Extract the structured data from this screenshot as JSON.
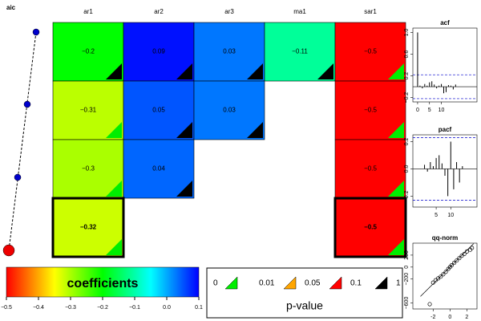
{
  "chart_data": [
    {
      "type": "coefficient-grid",
      "y_label": "aic",
      "columns": [
        "ar1",
        "ar2",
        "ar3",
        "ma1",
        "sar1"
      ],
      "values": [
        [
          -0.2,
          0.09,
          0.03,
          -0.11,
          -0.5
        ],
        [
          -0.31,
          0.05,
          0.03,
          null,
          -0.5
        ],
        [
          -0.3,
          0.04,
          null,
          null,
          -0.5
        ],
        [
          -0.32,
          null,
          null,
          null,
          -0.5
        ]
      ],
      "value_labels": [
        [
          "−0.2",
          "0.09",
          "0.03",
          "−0.11",
          "−0.5"
        ],
        [
          "−0.31",
          "0.05",
          "0.03",
          null,
          "−0.5"
        ],
        [
          "−0.3",
          "0.04",
          null,
          null,
          "−0.5"
        ],
        [
          "−0.32",
          null,
          null,
          null,
          "−0.5"
        ]
      ],
      "pvalue_colors": [
        [
          "#000000",
          "#000000",
          "#000000",
          "#000000",
          "#00ee00"
        ],
        [
          "#00ee00",
          "#000000",
          "#000000",
          null,
          "#00ee00"
        ],
        [
          "#00ee00",
          "#000000",
          null,
          null,
          "#00ee00"
        ],
        [
          "#00ee00",
          null,
          null,
          null,
          "#00ee00"
        ]
      ],
      "selected_row": 3,
      "colorbar": {
        "title": "coefficients",
        "lim": [
          -0.5,
          0.1
        ],
        "colors": [
          "#ff0000",
          "#ffff00",
          "#00ff00",
          "#00ffff",
          "#0000ff"
        ],
        "ticks": [
          {
            "value": -0.5,
            "label": "−0.5"
          },
          {
            "value": -0.4,
            "label": "−0.4"
          },
          {
            "value": -0.3,
            "label": "−0.3"
          },
          {
            "value": -0.2,
            "label": "−0.2"
          },
          {
            "value": -0.1,
            "label": "−0.1"
          },
          {
            "value": 0,
            "label": "0.0"
          },
          0.1
        ]
      },
      "pvalue_legend": {
        "title": "p-value",
        "breaks": [
          0,
          0.01,
          0.05,
          0.1,
          1
        ],
        "colors": [
          "#00ee00",
          "#ffa500",
          "#ff0000",
          "#000000"
        ]
      }
    },
    {
      "type": "acf",
      "title": "acf",
      "lags": [
        0,
        1,
        2,
        3,
        4,
        5,
        6,
        7,
        8,
        9,
        10,
        11,
        12,
        13,
        14,
        15,
        16
      ],
      "values": [
        1.0,
        0.02,
        -0.03,
        0.05,
        0.02,
        0.08,
        0.1,
        0.04,
        -0.03,
        0.02,
        0.05,
        -0.12,
        -0.1,
        0.03,
        0.02,
        -0.05,
        0.04
      ],
      "xlim": [
        -2,
        25
      ],
      "xticks": [
        0,
        5,
        10
      ],
      "ylim": [
        -0.28,
        1.08
      ],
      "yticks": [
        {
          "value": 1,
          "label": "1.0"
        },
        0.6,
        0.2,
        {
          "value": -0.2,
          "label": "−0.2"
        }
      ],
      "ci": [
        0.22,
        -0.22
      ]
    },
    {
      "type": "acf",
      "title": "pacf",
      "lags": [
        1,
        2,
        3,
        4,
        5,
        6,
        7,
        8,
        9,
        10,
        11,
        12,
        13,
        14
      ],
      "values": [
        0.03,
        -0.02,
        0.05,
        0.02,
        0.08,
        0.1,
        0.04,
        -0.05,
        -0.2,
        0.2,
        -0.15,
        0.05,
        -0.1,
        0.02
      ],
      "xlim": [
        -3,
        19
      ],
      "xticks": [
        5,
        10
      ],
      "ylim": [
        -0.28,
        0.25
      ],
      "yticks": [
        0.2,
        {
          "value": 0,
          "label": "0.0"
        },
        {
          "value": -0.2,
          "label": "−0.2"
        }
      ],
      "ci": [
        0.23,
        -0.23
      ]
    },
    {
      "type": "qq",
      "title": "qq-norm",
      "x": [
        -2.4,
        -2,
        -1.7,
        -1.4,
        -1.1,
        -0.8,
        -0.5,
        -0.2,
        0,
        0.2,
        0.5,
        0.8,
        1.1,
        1.4,
        1.7,
        2,
        2.4,
        2.6
      ],
      "y": [
        -620,
        -260,
        -220,
        -190,
        -160,
        -120,
        -80,
        -30,
        0,
        30,
        70,
        110,
        150,
        190,
        220,
        260,
        290,
        320
      ],
      "line": {
        "x": [
          -3.5,
          2.8
        ],
        "y": [
          -490,
          392
        ]
      },
      "xlim": [
        -4.4,
        3.2
      ],
      "xticks": [
        -2,
        0,
        2
      ],
      "ylim": [
        -700,
        400
      ],
      "yticks": [
        200,
        0,
        {
          "value": -200,
          "label": "−200"
        },
        {
          "value": -600,
          "label": "−600"
        }
      ]
    }
  ]
}
